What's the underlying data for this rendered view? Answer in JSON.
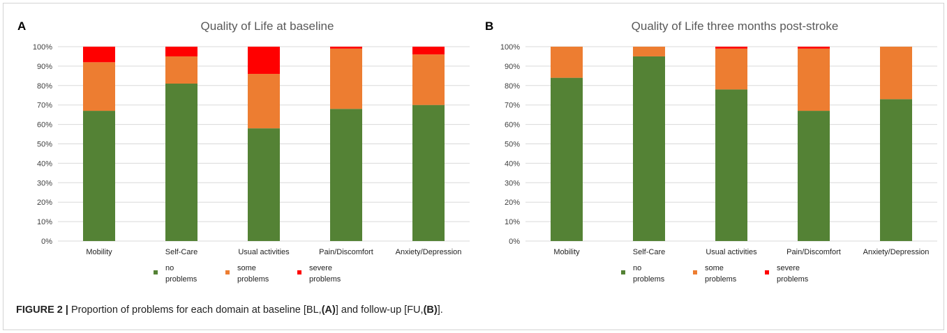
{
  "figure": {
    "caption_label": "FIGURE 2 |",
    "caption_text_1": " Proportion of problems for each domain at baseline [BL,",
    "caption_bold_1": "(A)",
    "caption_text_2": "] and follow-up [FU,",
    "caption_bold_2": "(B)",
    "caption_text_3": "]."
  },
  "colors": {
    "no_problems": "#548235",
    "some_problems": "#ED7D31",
    "severe_problems": "#FF0000",
    "gridline": "#d9d9d9",
    "axis_text": "#404040",
    "title_text": "#595959"
  },
  "chart_data": [
    {
      "panel_letter": "A",
      "type": "bar",
      "stacked": true,
      "title": "Quality of Life at baseline",
      "categories": [
        "Mobility",
        "Self-Care",
        "Usual activities",
        "Pain/Discomfort",
        "Anxiety/Depression"
      ],
      "series": [
        {
          "name": "no problems",
          "name_lines": [
            "no",
            "problems"
          ],
          "color": "#548235",
          "values": [
            67,
            81,
            58,
            68,
            70
          ]
        },
        {
          "name": "some problems",
          "name_lines": [
            "some",
            "problems"
          ],
          "color": "#ED7D31",
          "values": [
            25,
            14,
            28,
            31,
            26
          ]
        },
        {
          "name": "severe problems",
          "name_lines": [
            "severe",
            "problems"
          ],
          "color": "#FF0000",
          "values": [
            8,
            5,
            14,
            1,
            4
          ]
        }
      ],
      "ylim": [
        0,
        100
      ],
      "yticks": [
        "0%",
        "10%",
        "20%",
        "30%",
        "40%",
        "50%",
        "60%",
        "70%",
        "80%",
        "90%",
        "100%"
      ],
      "grid": true,
      "legend_position": "bottom"
    },
    {
      "panel_letter": "B",
      "type": "bar",
      "stacked": true,
      "title": "Quality of Life three months post-stroke",
      "categories": [
        "Mobility",
        "Self-Care",
        "Usual activities",
        "Pain/Discomfort",
        "Anxiety/Depression"
      ],
      "series": [
        {
          "name": "no problems",
          "name_lines": [
            "no",
            "problems"
          ],
          "color": "#548235",
          "values": [
            84,
            95,
            78,
            67,
            73
          ]
        },
        {
          "name": "some problems",
          "name_lines": [
            "some",
            "problems"
          ],
          "color": "#ED7D31",
          "values": [
            16,
            5,
            21,
            32,
            27
          ]
        },
        {
          "name": "severe problems",
          "name_lines": [
            "severe",
            "problems"
          ],
          "color": "#FF0000",
          "values": [
            0,
            0,
            1,
            1,
            0
          ]
        }
      ],
      "ylim": [
        0,
        100
      ],
      "yticks": [
        "0%",
        "10%",
        "20%",
        "30%",
        "40%",
        "50%",
        "60%",
        "70%",
        "80%",
        "90%",
        "100%"
      ],
      "grid": true,
      "legend_position": "bottom"
    }
  ]
}
